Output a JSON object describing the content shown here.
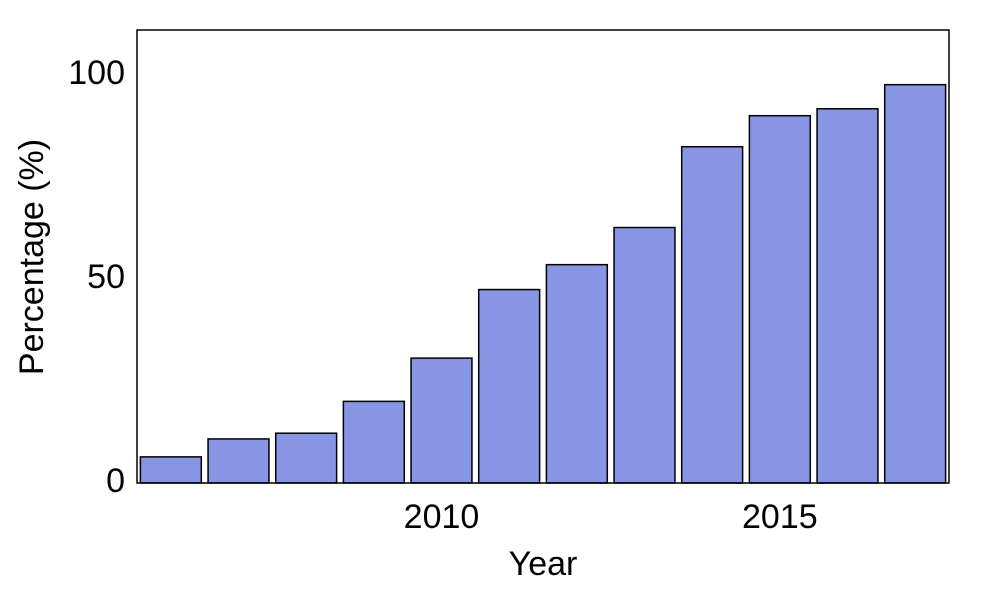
{
  "chart_data": {
    "type": "bar",
    "x_label": "Year",
    "y_label": "Percentage (%)",
    "x": [
      2006,
      2007,
      2008,
      2009,
      2010,
      2011,
      2012,
      2013,
      2014,
      2015,
      2016,
      2017
    ],
    "values": [
      6.4,
      10.8,
      12.2,
      20,
      30.6,
      47.4,
      53.5,
      62.6,
      82.4,
      90,
      91.7,
      97.6
    ],
    "color": "#8795e4",
    "xlim": [
      2005.5,
      2017.5
    ],
    "xticks": [
      2010,
      2015
    ],
    "ylim": [
      0,
      111
    ],
    "yticks": [
      0,
      50,
      100
    ],
    "grid": false
  }
}
